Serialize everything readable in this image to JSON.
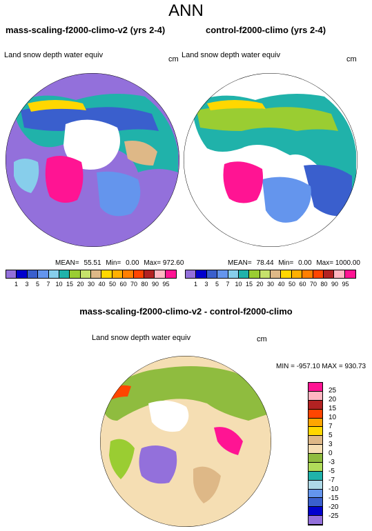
{
  "title": "ANN",
  "panels": [
    {
      "title": "mass-scaling-f2000-climo-v2 (yrs 2-4)",
      "variable": "Land snow depth water equiv",
      "units": "cm",
      "stats": {
        "mean_label": "MEAN=",
        "mean": "55.51",
        "min_label": "Min=",
        "min": "0.00",
        "max_label": "Max=",
        "max": "972.60"
      }
    },
    {
      "title": "control-f2000-climo (yrs 2-4)",
      "variable": "Land snow depth water equiv",
      "units": "cm",
      "stats": {
        "mean_label": "MEAN=",
        "mean": "78.44",
        "min_label": "Min=",
        "min": "0.00",
        "max_label": "Max=",
        "max": "1000.00"
      }
    }
  ],
  "diff_panel": {
    "title": "mass-scaling-f2000-climo-v2 - control-f2000-climo",
    "variable": "Land snow depth water equiv",
    "units": "cm",
    "minmax": "MIN = -957.10 MAX = 930.73"
  },
  "colorbar_abs": {
    "labels": [
      "1",
      "3",
      "5",
      "7",
      "10",
      "15",
      "20",
      "30",
      "40",
      "50",
      "60",
      "70",
      "80",
      "90",
      "95"
    ],
    "colors": [
      "#9370db",
      "#0000cd",
      "#3a5fcd",
      "#6495ed",
      "#87ceeb",
      "#20b2aa",
      "#9acd32",
      "#c6e26b",
      "#deb887",
      "#ffd700",
      "#ffb000",
      "#ff7f00",
      "#ff4500",
      "#b22222",
      "#ffb6c1",
      "#ff1493"
    ]
  },
  "colorbar_diff": {
    "labels": [
      "25",
      "20",
      "15",
      "10",
      "7",
      "5",
      "3",
      "0",
      "-3",
      "-5",
      "-7",
      "-10",
      "-15",
      "-20",
      "-25"
    ],
    "colors": [
      "#ff1493",
      "#ffb6c1",
      "#b22222",
      "#ff4500",
      "#ffa500",
      "#ffd700",
      "#deb887",
      "#f5deb3",
      "#8fbc3f",
      "#b0dc5a",
      "#20b2aa",
      "#add8e6",
      "#6495ed",
      "#3a5fcd",
      "#0000cd",
      "#9370db"
    ]
  },
  "chart_data": [
    {
      "type": "heatmap",
      "title": "mass-scaling-f2000-climo-v2 (yrs 2-4)",
      "variable": "Land snow depth water equiv",
      "units": "cm",
      "projection": "north polar stereographic",
      "mean": 55.51,
      "min": 0.0,
      "max": 972.6,
      "levels": [
        1,
        3,
        5,
        7,
        10,
        15,
        20,
        30,
        40,
        50,
        60,
        70,
        80,
        90,
        95
      ]
    },
    {
      "type": "heatmap",
      "title": "control-f2000-climo (yrs 2-4)",
      "variable": "Land snow depth water equiv",
      "units": "cm",
      "projection": "north polar stereographic",
      "mean": 78.44,
      "min": 0.0,
      "max": 1000.0,
      "levels": [
        1,
        3,
        5,
        7,
        10,
        15,
        20,
        30,
        40,
        50,
        60,
        70,
        80,
        90,
        95
      ]
    },
    {
      "type": "heatmap",
      "title": "mass-scaling-f2000-climo-v2 - control-f2000-climo",
      "variable": "Land snow depth water equiv",
      "units": "cm",
      "projection": "north polar stereographic",
      "min": -957.1,
      "max": 930.73,
      "levels": [
        -25,
        -20,
        -15,
        -10,
        -7,
        -5,
        -3,
        0,
        3,
        5,
        7,
        10,
        15,
        20,
        25
      ]
    }
  ]
}
